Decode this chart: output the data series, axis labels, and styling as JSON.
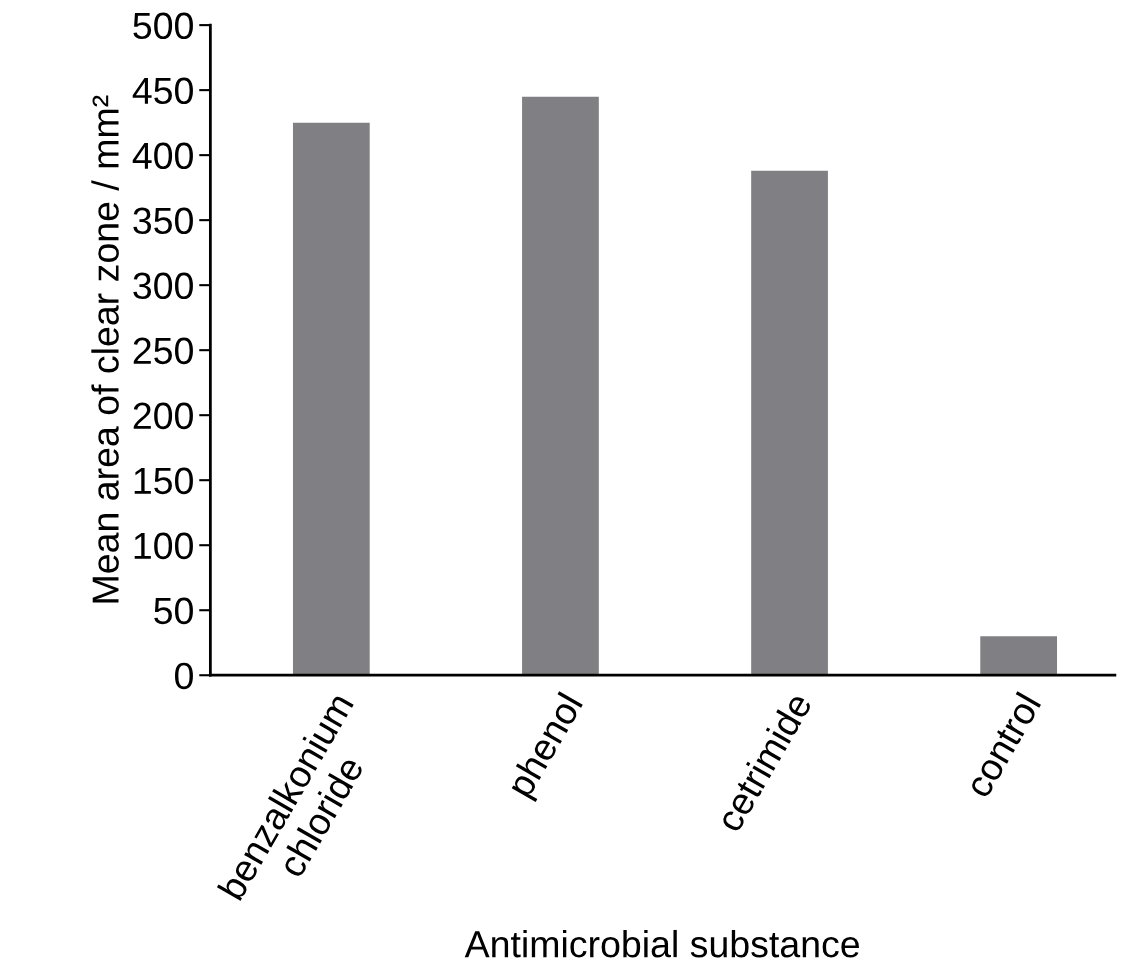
{
  "chart_data": {
    "type": "bar",
    "categories": [
      "benzalkonium\nchloride",
      "phenol",
      "cetrimide",
      "control"
    ],
    "values": [
      425,
      445,
      388,
      30
    ],
    "color": "#808084",
    "xlabel": "Antimicrobial substance",
    "ylabel": "Mean area of clear zone / mm²",
    "ylim": [
      0,
      500
    ],
    "yticks": [
      0,
      50,
      100,
      150,
      200,
      250,
      300,
      350,
      400,
      450,
      500
    ],
    "grid": false,
    "legend": false
  }
}
